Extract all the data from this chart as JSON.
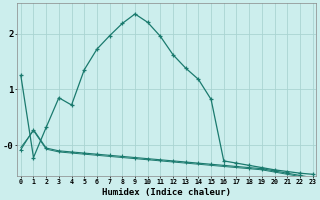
{
  "xlabel": "Humidex (Indice chaleur)",
  "background_color": "#cceeed",
  "grid_color": "#aad4d2",
  "line_color": "#1a7a6e",
  "x_ticks": [
    0,
    1,
    2,
    3,
    4,
    5,
    6,
    7,
    8,
    9,
    10,
    11,
    12,
    13,
    14,
    15,
    16,
    17,
    18,
    19,
    20,
    21,
    22,
    23
  ],
  "ylim": [
    -0.55,
    2.55
  ],
  "xlim": [
    -0.3,
    23.3
  ],
  "series1_x": [
    0,
    1,
    2,
    3,
    4,
    5,
    6,
    7,
    8,
    9,
    10,
    11,
    12,
    13,
    14,
    15,
    16,
    17,
    18,
    19,
    20,
    21,
    22,
    23
  ],
  "series1_y": [
    1.25,
    -0.22,
    0.32,
    0.85,
    0.72,
    1.35,
    1.72,
    1.96,
    2.18,
    2.35,
    2.2,
    1.95,
    1.62,
    1.38,
    1.18,
    0.82,
    -0.28,
    -0.32,
    -0.36,
    -0.4,
    -0.44,
    -0.47,
    -0.5,
    -0.52
  ],
  "series2_x": [
    0,
    1,
    2,
    3,
    4,
    5,
    6,
    7,
    8,
    9,
    10,
    11,
    12,
    13,
    14,
    15,
    16,
    17,
    18,
    19,
    20,
    21,
    22,
    23
  ],
  "series2_y": [
    -0.08,
    0.28,
    -0.05,
    -0.1,
    -0.12,
    -0.14,
    -0.16,
    -0.18,
    -0.2,
    -0.22,
    -0.24,
    -0.26,
    -0.28,
    -0.3,
    -0.32,
    -0.34,
    -0.36,
    -0.38,
    -0.4,
    -0.42,
    -0.46,
    -0.5,
    -0.54,
    -0.58
  ],
  "series3_x": [
    0,
    1,
    2,
    3,
    4,
    5,
    6,
    7,
    8,
    9,
    10,
    11,
    12,
    13,
    14,
    15,
    16,
    17,
    18,
    19,
    20,
    21,
    22,
    23
  ],
  "series3_y": [
    -0.04,
    0.26,
    -0.07,
    -0.12,
    -0.14,
    -0.16,
    -0.18,
    -0.2,
    -0.22,
    -0.24,
    -0.26,
    -0.28,
    -0.3,
    -0.32,
    -0.34,
    -0.36,
    -0.38,
    -0.4,
    -0.42,
    -0.44,
    -0.48,
    -0.52,
    -0.56,
    -0.62
  ],
  "ytick_values": [
    0.0,
    1.0,
    2.0
  ],
  "ytick_labels": [
    "-0",
    "1",
    "2"
  ]
}
